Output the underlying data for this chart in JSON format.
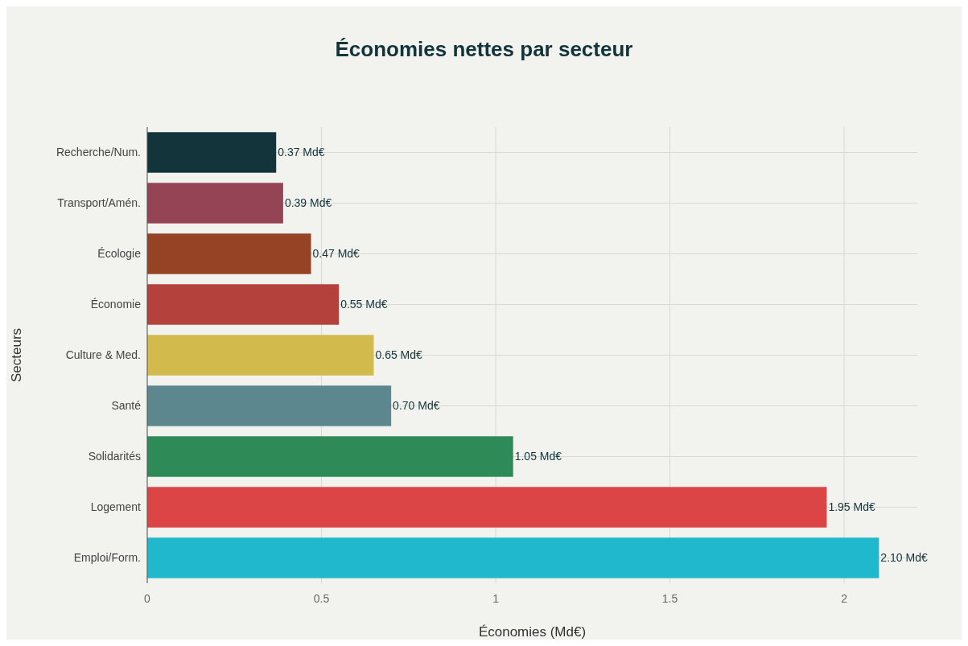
{
  "chart_data": {
    "type": "bar",
    "orientation": "horizontal",
    "title": "Économies nettes par secteur",
    "xlabel": "Économies (Md€)",
    "ylabel": "Secteurs",
    "categories": [
      "Recherche/Num.",
      "Transport/Amén.",
      "Écologie",
      "Économie",
      "Culture & Med.",
      "Santé",
      "Solidarités",
      "Logement",
      "Emploi/Form."
    ],
    "values": [
      0.37,
      0.39,
      0.47,
      0.55,
      0.65,
      0.7,
      1.05,
      1.95,
      2.1
    ],
    "colors": [
      "#13343b",
      "#944454",
      "#964325",
      "#b4413c",
      "#d2ba4c",
      "#5d878f",
      "#2e8b57",
      "#db4545",
      "#1fb8cd"
    ],
    "value_labels": [
      "0.37 Md€",
      "0.39 Md€",
      "0.47 Md€",
      "0.55 Md€",
      "0.65 Md€",
      "0.70 Md€",
      "1.05 Md€",
      "1.95 Md€",
      "2.10 Md€"
    ],
    "xlim": [
      0,
      2.21
    ],
    "xticks": [
      0,
      0.5,
      1,
      1.5,
      2
    ],
    "grid": true
  }
}
